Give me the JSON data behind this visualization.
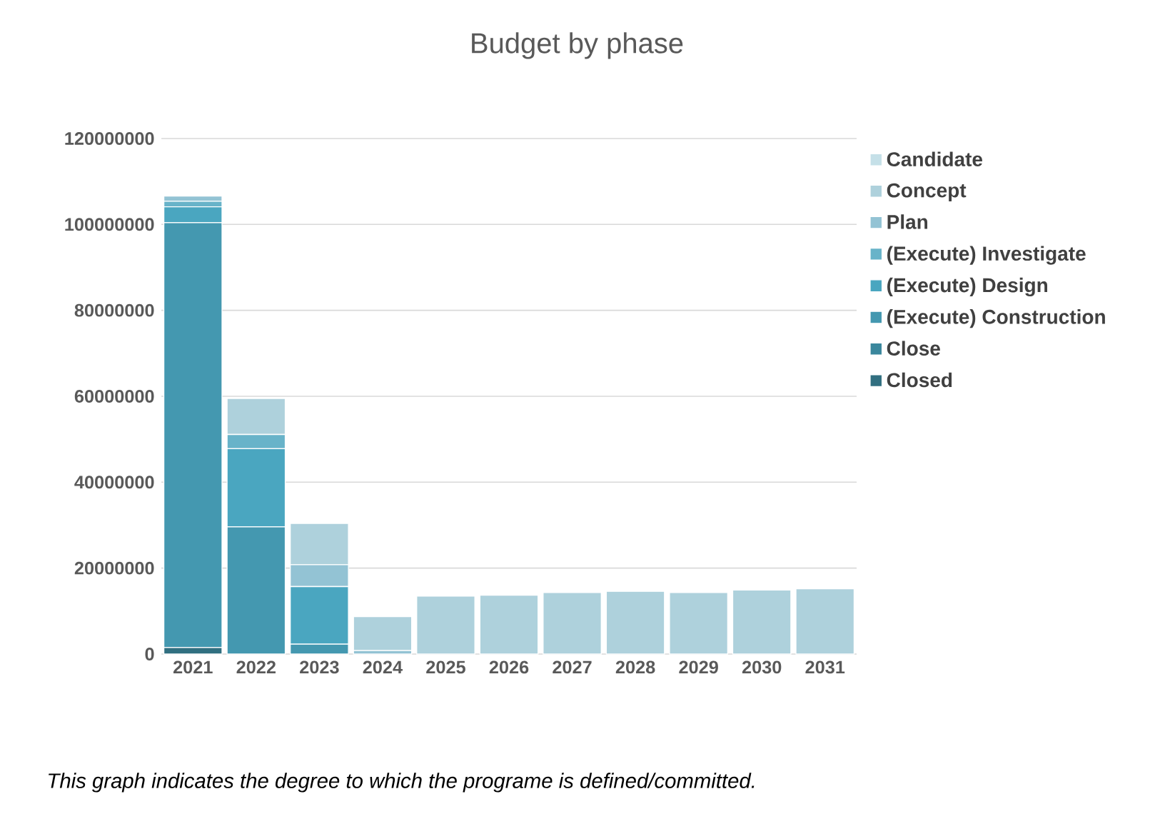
{
  "chart_data": {
    "type": "bar",
    "stacked": true,
    "title": "Budget by phase",
    "categories": [
      "2021",
      "2022",
      "2023",
      "2024",
      "2025",
      "2026",
      "2027",
      "2028",
      "2029",
      "2030",
      "2031"
    ],
    "series": [
      {
        "name": "Closed",
        "color": "#316f80",
        "values": [
          1500000,
          0,
          0,
          0,
          0,
          0,
          0,
          0,
          0,
          0,
          0
        ]
      },
      {
        "name": "Close",
        "color": "#3a879d",
        "values": [
          0,
          0,
          0,
          0,
          0,
          0,
          0,
          0,
          0,
          0,
          0
        ]
      },
      {
        "name": "(Execute) Construction",
        "color": "#4498b0",
        "values": [
          98900000,
          29600000,
          2300000,
          0,
          0,
          0,
          0,
          0,
          0,
          0,
          0
        ]
      },
      {
        "name": "(Execute) Design",
        "color": "#4aa6c0",
        "values": [
          3700000,
          18200000,
          13400000,
          0,
          0,
          0,
          0,
          0,
          0,
          0,
          0
        ]
      },
      {
        "name": "(Execute) Investigate",
        "color": "#68b3c9",
        "values": [
          1300000,
          3300000,
          0,
          0,
          0,
          0,
          0,
          0,
          0,
          0,
          0
        ]
      },
      {
        "name": "Plan",
        "color": "#93c3d4",
        "values": [
          1200000,
          0,
          5100000,
          800000,
          0,
          0,
          0,
          0,
          0,
          0,
          0
        ]
      },
      {
        "name": "Concept",
        "color": "#aed1dc",
        "values": [
          0,
          8400000,
          9600000,
          7900000,
          13500000,
          13700000,
          14300000,
          14600000,
          14300000,
          14900000,
          15200000
        ]
      },
      {
        "name": "Candidate",
        "color": "#c5e0e8",
        "values": [
          0,
          0,
          0,
          0,
          0,
          0,
          0,
          0,
          0,
          0,
          0
        ]
      }
    ],
    "ylim": [
      0,
      120000000
    ],
    "yticks": [
      0,
      20000000,
      40000000,
      60000000,
      80000000,
      100000000,
      120000000
    ],
    "grid": "y",
    "legend": "right",
    "annotations": [
      "*This graph indicates the degree to which the programe is defined/committed.*"
    ]
  }
}
